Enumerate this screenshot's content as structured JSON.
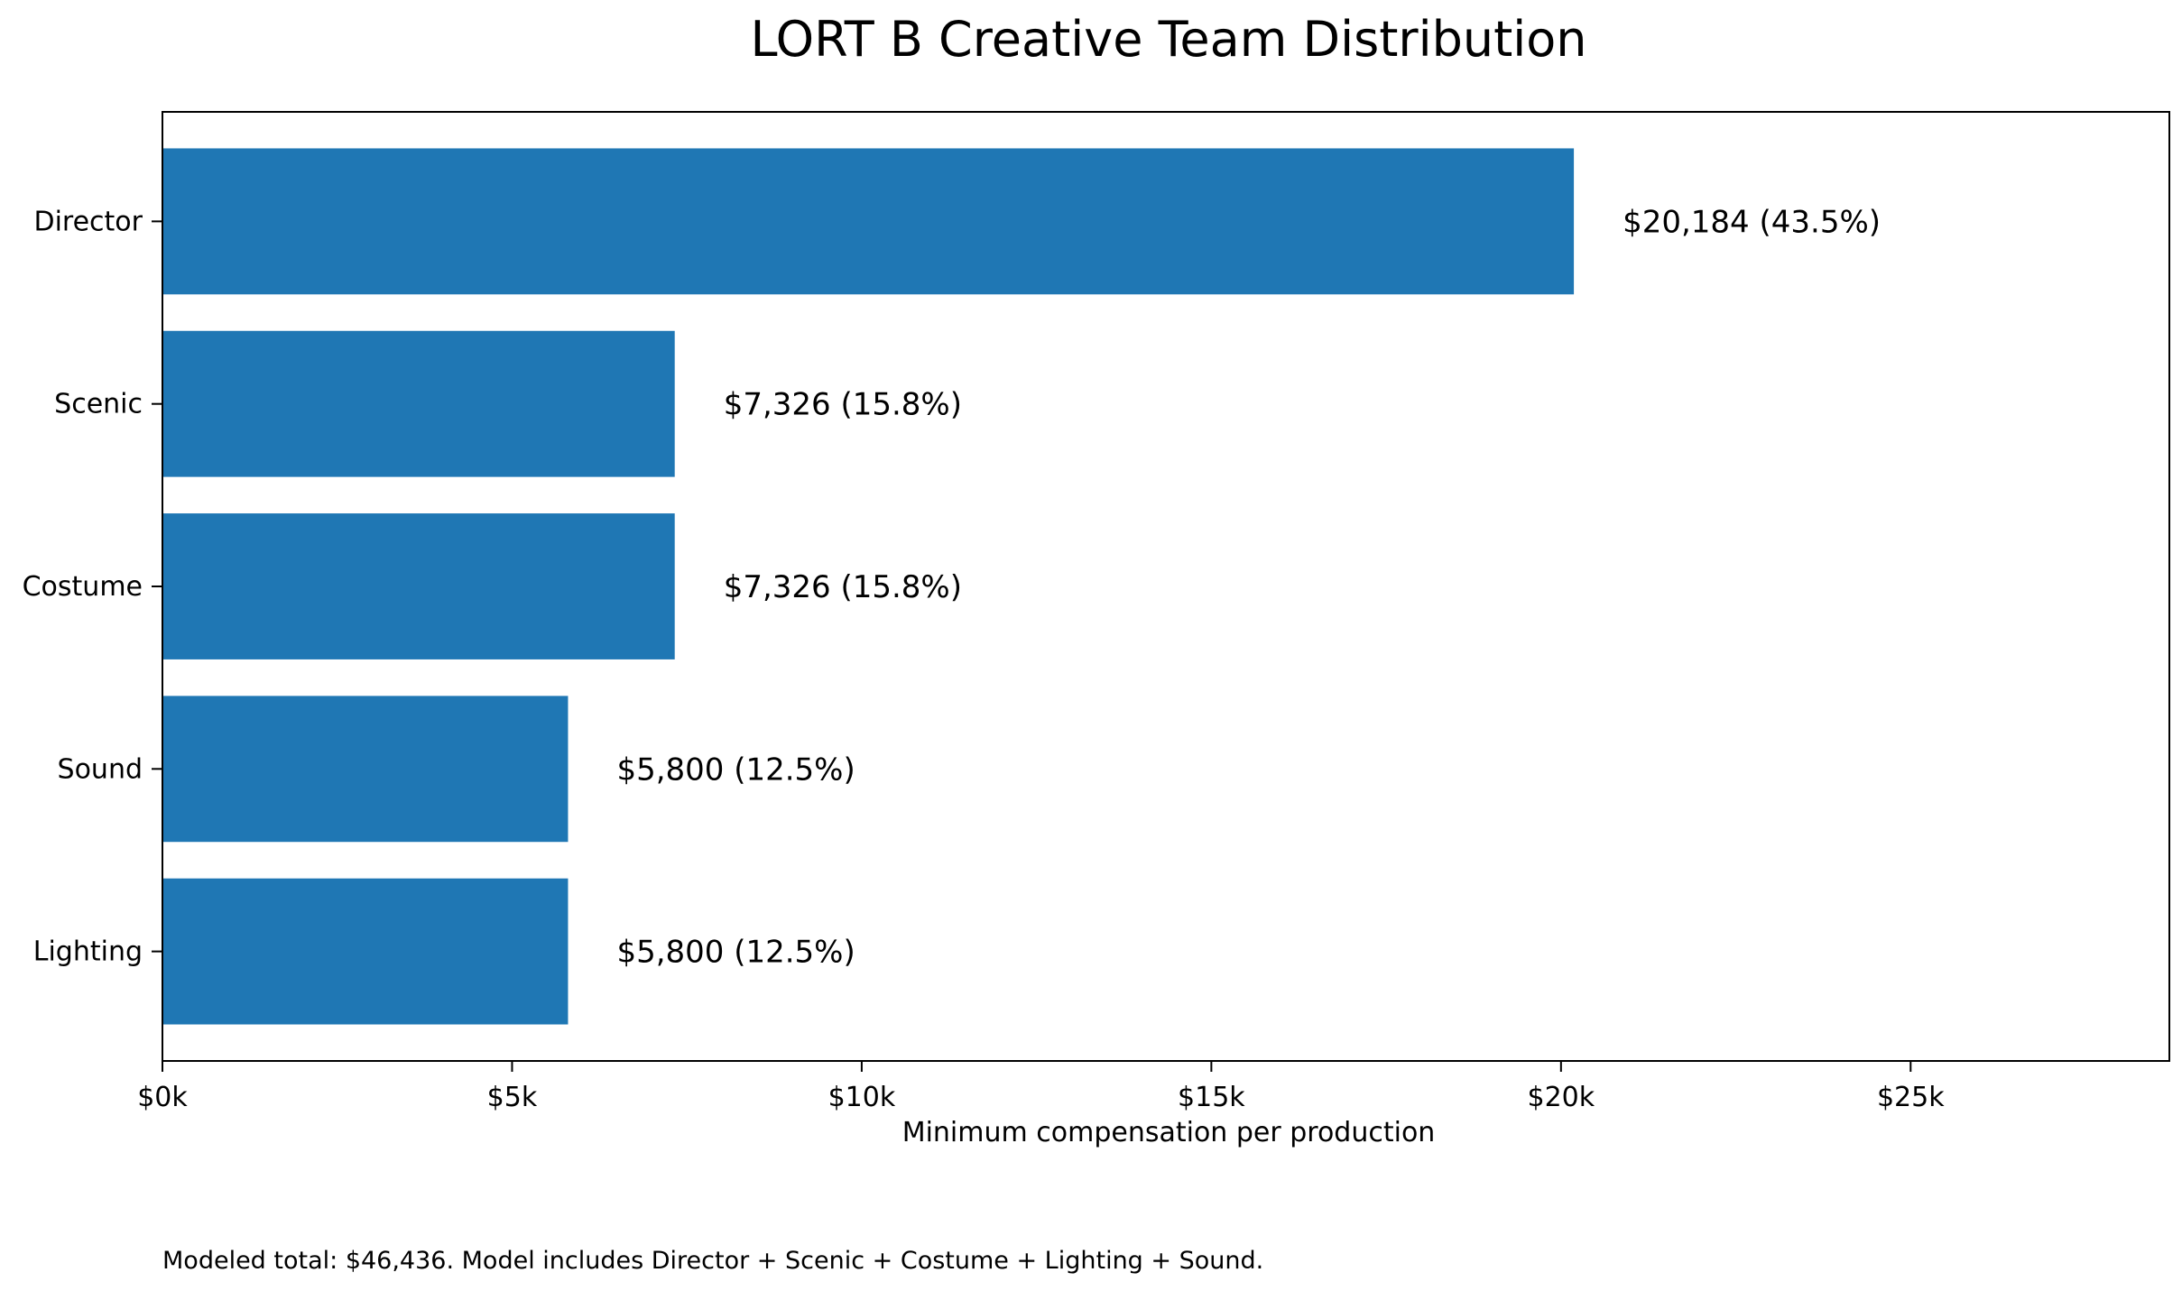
{
  "chart_data": {
    "type": "bar",
    "orientation": "horizontal",
    "title": "LORT B Creative Team Distribution",
    "xlabel": "Minimum compensation per production",
    "ylabel": "",
    "categories": [
      "Director",
      "Scenic",
      "Costume",
      "Sound",
      "Lighting"
    ],
    "values": [
      20184,
      7326,
      7326,
      5800,
      5800
    ],
    "shares": [
      43.5,
      15.8,
      15.8,
      12.5,
      12.5
    ],
    "data_labels": [
      "$20,184  (43.5%)",
      "$7,326  (15.8%)",
      "$7,326  (15.8%)",
      "$5,800  (12.5%)",
      "$5,800  (12.5%)"
    ],
    "xlim": [
      0,
      28700
    ],
    "x_ticks": [
      0,
      5000,
      10000,
      15000,
      20000,
      25000
    ],
    "x_tick_labels": [
      "$0k",
      "$5k",
      "$10k",
      "$15k",
      "$20k",
      "$25k"
    ],
    "bar_color": "#1f77b4",
    "grid": false,
    "legend": "none",
    "footnote": "Modeled total: $46,436. Model includes Director + Scenic + Costume + Lighting + Sound."
  }
}
